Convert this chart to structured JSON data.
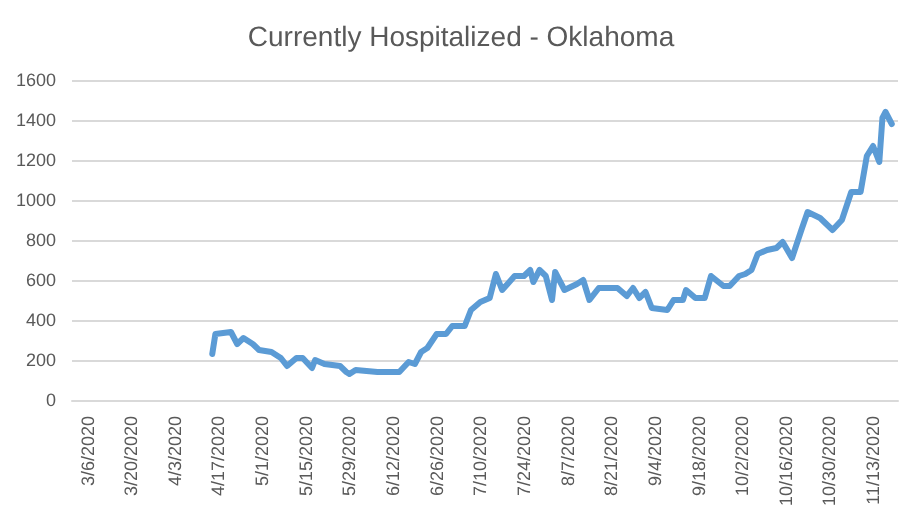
{
  "chart_data": {
    "type": "line",
    "title": "Currently Hospitalized - Oklahoma",
    "x": [
      "2020-04-15",
      "2020-04-16",
      "2020-04-21",
      "2020-04-23",
      "2020-04-25",
      "2020-04-28",
      "2020-04-30",
      "2020-05-04",
      "2020-05-07",
      "2020-05-09",
      "2020-05-12",
      "2020-05-14",
      "2020-05-17",
      "2020-05-18",
      "2020-05-21",
      "2020-05-26",
      "2020-05-28",
      "2020-05-29",
      "2020-05-31",
      "2020-06-07",
      "2020-06-10",
      "2020-06-14",
      "2020-06-17",
      "2020-06-19",
      "2020-06-21",
      "2020-06-23",
      "2020-06-26",
      "2020-06-29",
      "2020-07-01",
      "2020-07-05",
      "2020-07-07",
      "2020-07-10",
      "2020-07-13",
      "2020-07-15",
      "2020-07-17",
      "2020-07-21",
      "2020-07-24",
      "2020-07-26",
      "2020-07-27",
      "2020-07-29",
      "2020-07-31",
      "2020-08-02",
      "2020-08-03",
      "2020-08-06",
      "2020-08-10",
      "2020-08-12",
      "2020-08-14",
      "2020-08-17",
      "2020-08-23",
      "2020-08-26",
      "2020-08-28",
      "2020-08-30",
      "2020-09-01",
      "2020-09-03",
      "2020-09-08",
      "2020-09-10",
      "2020-09-13",
      "2020-09-14",
      "2020-09-17",
      "2020-09-20",
      "2020-09-22",
      "2020-09-26",
      "2020-09-28",
      "2020-10-01",
      "2020-10-03",
      "2020-10-05",
      "2020-10-07",
      "2020-10-10",
      "2020-10-13",
      "2020-10-15",
      "2020-10-18",
      "2020-10-21",
      "2020-10-23",
      "2020-10-27",
      "2020-10-31",
      "2020-11-03",
      "2020-11-06",
      "2020-11-09",
      "2020-11-11",
      "2020-11-13",
      "2020-11-15",
      "2020-11-16",
      "2020-11-17",
      "2020-11-19"
    ],
    "series": [
      {
        "color": "#5b9bd5",
        "values": [
          230,
          330,
          340,
          280,
          310,
          280,
          250,
          240,
          210,
          170,
          210,
          210,
          160,
          200,
          180,
          170,
          140,
          130,
          150,
          140,
          140,
          140,
          190,
          180,
          240,
          260,
          330,
          330,
          370,
          370,
          450,
          490,
          510,
          630,
          550,
          620,
          620,
          650,
          590,
          650,
          620,
          500,
          640,
          550,
          580,
          600,
          500,
          560,
          560,
          520,
          560,
          510,
          540,
          460,
          450,
          500,
          500,
          550,
          510,
          510,
          620,
          570,
          570,
          620,
          630,
          650,
          730,
          750,
          760,
          790,
          710,
          850,
          940,
          910,
          850,
          900,
          1040,
          1040,
          1220,
          1270,
          1190,
          1410,
          1440,
          1380
        ]
      }
    ],
    "xlim": [
      "2020-03-01",
      "2020-11-21"
    ],
    "xticks": [
      {
        "value": "2020-03-06",
        "label": "3/6/2020"
      },
      {
        "value": "2020-03-20",
        "label": "3/20/2020"
      },
      {
        "value": "2020-04-03",
        "label": "4/3/2020"
      },
      {
        "value": "2020-04-17",
        "label": "4/17/2020"
      },
      {
        "value": "2020-05-01",
        "label": "5/1/2020"
      },
      {
        "value": "2020-05-15",
        "label": "5/15/2020"
      },
      {
        "value": "2020-05-29",
        "label": "5/29/2020"
      },
      {
        "value": "2020-06-12",
        "label": "6/12/2020"
      },
      {
        "value": "2020-06-26",
        "label": "6/26/2020"
      },
      {
        "value": "2020-07-10",
        "label": "7/10/2020"
      },
      {
        "value": "2020-07-24",
        "label": "7/24/2020"
      },
      {
        "value": "2020-08-07",
        "label": "8/7/2020"
      },
      {
        "value": "2020-08-21",
        "label": "8/21/2020"
      },
      {
        "value": "2020-09-04",
        "label": "9/4/2020"
      },
      {
        "value": "2020-09-18",
        "label": "9/18/2020"
      },
      {
        "value": "2020-10-02",
        "label": "10/2/2020"
      },
      {
        "value": "2020-10-16",
        "label": "10/16/2020"
      },
      {
        "value": "2020-10-30",
        "label": "10/30/2020"
      },
      {
        "value": "2020-11-13",
        "label": "11/13/2020"
      }
    ],
    "ylim": [
      0,
      1600
    ],
    "yticks": [
      0,
      200,
      400,
      600,
      800,
      1000,
      1200,
      1400,
      1600
    ],
    "grid": "y",
    "marker": "none",
    "line_style": "solid"
  }
}
